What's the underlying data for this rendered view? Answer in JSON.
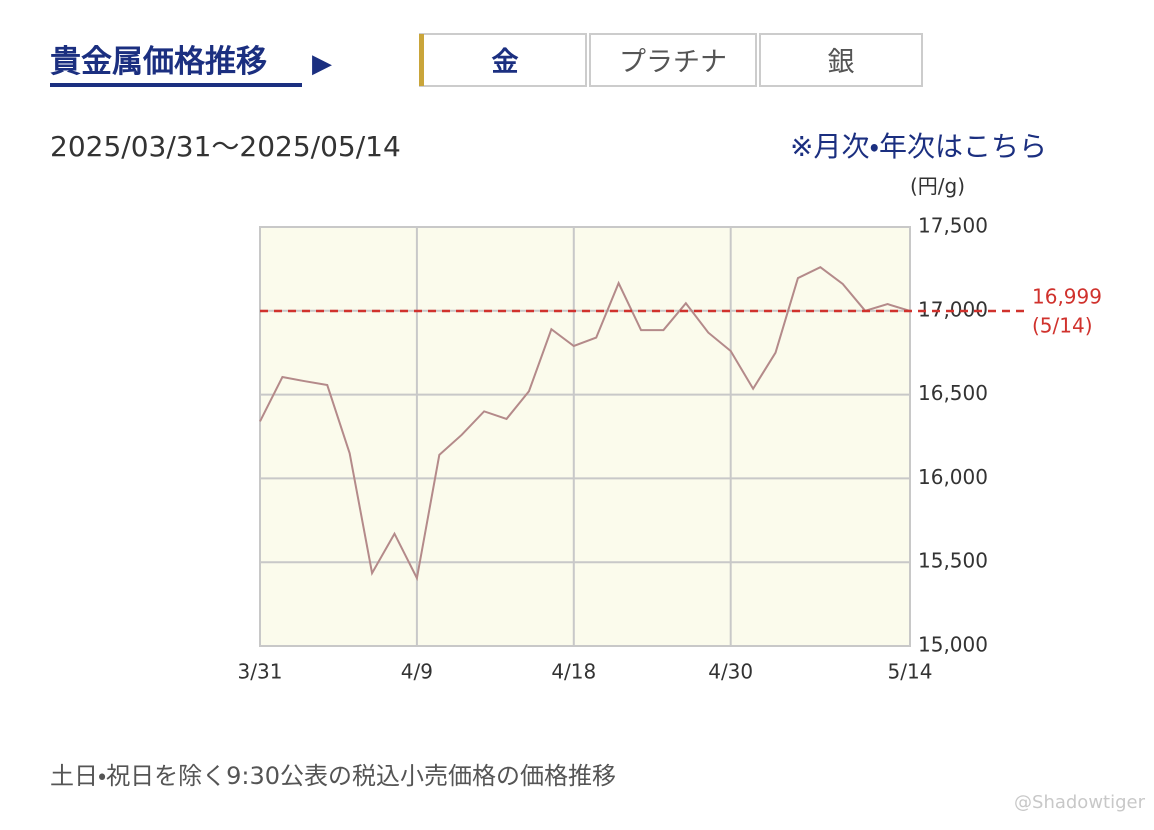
{
  "header": {
    "title": "貴金属価格推移",
    "arrow": "▶",
    "tabs": [
      "金",
      "プラチナ",
      "銀"
    ]
  },
  "date_range": "2025/03/31〜2025/05/14",
  "link": "※月次・年次はこちら",
  "footnote": "土日・祝日を除く9:30公表の税込小売価格の価格推移",
  "watermark": "@Shadowtiger",
  "chart_data": {
    "type": "line",
    "y_label": "(円/g)",
    "categories": [
      "3/31",
      null,
      null,
      null,
      null,
      null,
      null,
      "4/9",
      null,
      null,
      null,
      null,
      null,
      null,
      "4/18",
      null,
      null,
      null,
      null,
      null,
      null,
      "4/30",
      null,
      null,
      null,
      null,
      null,
      null,
      null,
      "5/14"
    ],
    "values": [
      16340,
      16605,
      16580,
      16557,
      16150,
      15435,
      15670,
      15405,
      16140,
      16260,
      16400,
      16355,
      16520,
      16890,
      16790,
      16840,
      17165,
      16885,
      16885,
      17045,
      16870,
      16760,
      16535,
      16750,
      17195,
      17260,
      17160,
      17000,
      17040,
      16999
    ],
    "color": "#b48a8a",
    "ylim": [
      15000,
      17500
    ],
    "yticks": [
      {
        "value": 15000,
        "label": "15,000"
      },
      {
        "value": 15500,
        "label": "15,500"
      },
      {
        "value": 16000,
        "label": "16,000"
      },
      {
        "value": 16500,
        "label": "16,500"
      },
      {
        "value": 17000,
        "label": "17,000"
      },
      {
        "value": 17500,
        "label": "17,500"
      }
    ],
    "grid": true,
    "reference": {
      "value": 16999,
      "label": "16,999",
      "date": "(5/14)",
      "color": "#d0322d"
    }
  }
}
